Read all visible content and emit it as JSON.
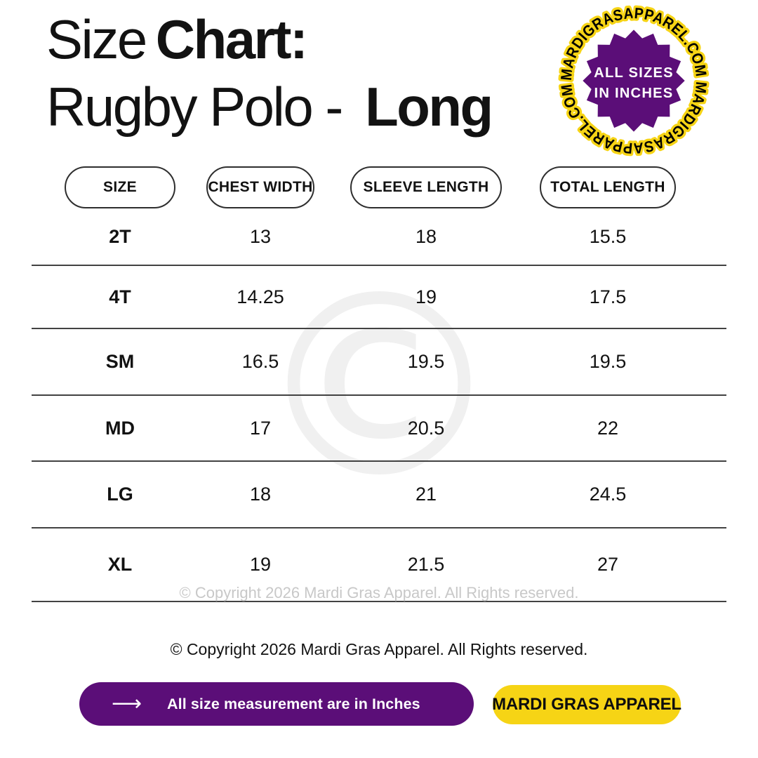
{
  "colors": {
    "purple": "#5B0E78",
    "yellow": "#F6D415",
    "ink": "#121212",
    "divider": "#424242",
    "muted": "#C8C8C8",
    "watermark": "#F0F0F0"
  },
  "title": {
    "line1_regular": "Size",
    "line1_bold": "Chart:",
    "line2_regular": "Rugby Polo -",
    "line2_bold": "Long"
  },
  "badge": {
    "ring_text": "MARDIGRASAPPAREL.COM MARDIGRASAPPAREL.COM ",
    "center_line1": "ALL SIZES",
    "center_line2": "IN INCHES"
  },
  "table": {
    "headers": [
      "SIZE",
      "CHEST WIDTH",
      "SLEEVE LENGTH",
      "TOTAL LENGTH"
    ],
    "rows": [
      {
        "size": "2T",
        "chest": "13",
        "sleeve": "18",
        "total": "15.5"
      },
      {
        "size": "4T",
        "chest": "14.25",
        "sleeve": "19",
        "total": "17.5"
      },
      {
        "size": "SM",
        "chest": "16.5",
        "sleeve": "19.5",
        "total": "19.5"
      },
      {
        "size": "MD",
        "chest": "17",
        "sleeve": "20.5",
        "total": "22"
      },
      {
        "size": "LG",
        "chest": "18",
        "sleeve": "21",
        "total": "24.5"
      },
      {
        "size": "XL",
        "chest": "19",
        "sleeve": "21.5",
        "total": "27"
      }
    ]
  },
  "watermark": {
    "glyph": "©",
    "inline_copyright": "© Copyright 2026 Mardi Gras Apparel. All Rights reserved."
  },
  "footer": {
    "copyright": "© Copyright 2026 Mardi Gras Apparel. All Rights reserved.",
    "note_button": {
      "arrow": "⟶",
      "label": "All size measurement are in Inches"
    },
    "brand_button": {
      "label": "MARDI GRAS APPAREL"
    }
  },
  "chart_data": {
    "type": "table",
    "title": "Size Chart: Rugby Polo - Long",
    "units": "inches",
    "columns": [
      "SIZE",
      "CHEST WIDTH",
      "SLEEVE LENGTH",
      "TOTAL LENGTH"
    ],
    "rows": [
      [
        "2T",
        13,
        18,
        15.5
      ],
      [
        "4T",
        14.25,
        19,
        17.5
      ],
      [
        "SM",
        16.5,
        19.5,
        19.5
      ],
      [
        "MD",
        17,
        20.5,
        22
      ],
      [
        "LG",
        18,
        21,
        24.5
      ],
      [
        "XL",
        19,
        21.5,
        27
      ]
    ]
  }
}
